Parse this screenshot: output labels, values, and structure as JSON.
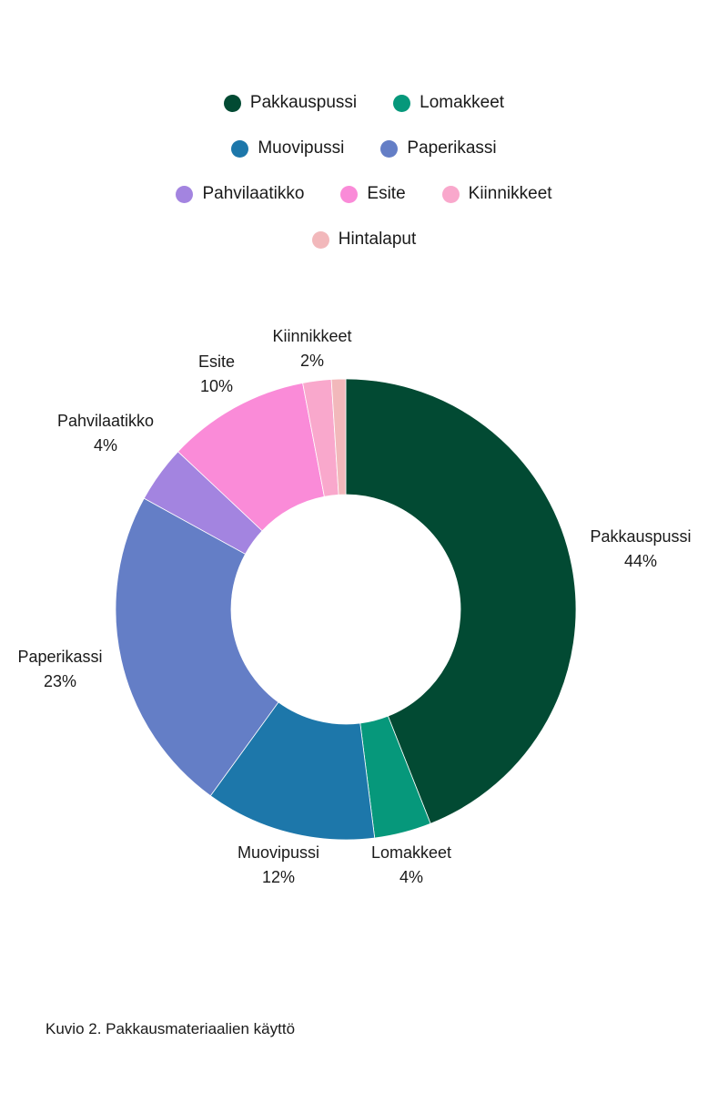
{
  "chart_data": {
    "type": "pie",
    "title": "",
    "series": [
      {
        "name": "Pakkauspussi",
        "value": 44,
        "label": "44%",
        "color": "#024a33"
      },
      {
        "name": "Lomakkeet",
        "value": 4,
        "label": "4%",
        "color": "#06987b"
      },
      {
        "name": "Muovipussi",
        "value": 12,
        "label": "12%",
        "color": "#1d77aa"
      },
      {
        "name": "Paperikassi",
        "value": 23,
        "label": "23%",
        "color": "#647ec6"
      },
      {
        "name": "Pahvilaatikko",
        "value": 4,
        "label": "4%",
        "color": "#a384e0"
      },
      {
        "name": "Esite",
        "value": 10,
        "label": "10%",
        "color": "#fa8bd8"
      },
      {
        "name": "Kiinnikkeet",
        "value": 2,
        "label": "2%",
        "color": "#f9a8cc"
      },
      {
        "name": "Hintalaput",
        "value": 1,
        "label": "",
        "color": "#f2b8bb"
      }
    ],
    "legend_placement": "top",
    "donut": true
  },
  "caption": "Kuvio 2. Pakkausmateriaalien käyttö"
}
